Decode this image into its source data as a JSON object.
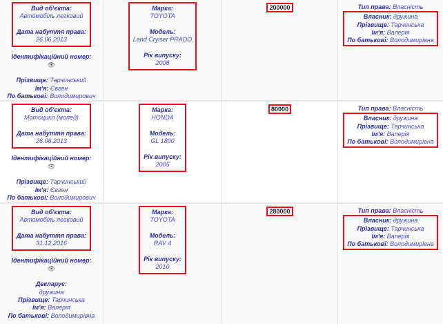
{
  "labels": {
    "object_type": "Вид об'єкта:",
    "acquired_date": "Дата набуття права:",
    "id_number": "Ідентифікаційний номер:",
    "surname": "Прізвище:",
    "name": "Ім'я:",
    "patronymic": "По батькові:",
    "declarant": "Декларує:",
    "brand": "Марка:",
    "model": "Модель:",
    "year": "Рік випуску:",
    "right_type": "Тип права:",
    "owner": "Власник:"
  },
  "icons": {
    "id_hidden": "hidden-eye-icon"
  },
  "colors": {
    "highlight": "#e8101a",
    "label": "#2b2ba3",
    "value": "#4747c9"
  },
  "rows": [
    {
      "object_type": "Автомобіль легковий",
      "acquired_date": "26.06.2013",
      "id_icon": "🚫",
      "declarant": null,
      "person": {
        "surname": "Тарчинський",
        "name": "Євген",
        "patronymic": "Володимирович"
      },
      "brand": "TOYOTA",
      "model": "Land Cryiser PRADO",
      "year": "2008",
      "cost": "200000",
      "right_type": "Власність",
      "owner": {
        "relation": "дружина",
        "surname": "Тарчинська",
        "name": "Валерія",
        "patronymic": "Володимирівна"
      }
    },
    {
      "object_type": "Мотоцикл (мопед)",
      "acquired_date": "26.06.2013",
      "id_icon": "🚫",
      "declarant": null,
      "person": {
        "surname": "Тарчинський",
        "name": "Євген",
        "patronymic": "Володимирович"
      },
      "brand": "HONDA",
      "model": "GL 1800",
      "year": "2005",
      "cost": "80000",
      "right_type": "Власність",
      "owner": {
        "relation": "дружина",
        "surname": "Тарчинська",
        "name": "Валерія",
        "patronymic": "Володимирівна"
      }
    },
    {
      "object_type": "Автомобіль легковий",
      "acquired_date": "31.12.2016",
      "id_icon": "🚫",
      "declarant": "дружина",
      "person": {
        "surname": "Тарчинська",
        "name": "Валерія",
        "patronymic": "Володимирівна"
      },
      "brand": "TOYOTA",
      "model": "RAV 4",
      "year": "2010",
      "cost": "280000",
      "right_type": "Власність",
      "owner": {
        "relation": "дружина",
        "surname": "Тарчинська",
        "name": "Валерія",
        "patronymic": "Володимирівна"
      }
    }
  ]
}
